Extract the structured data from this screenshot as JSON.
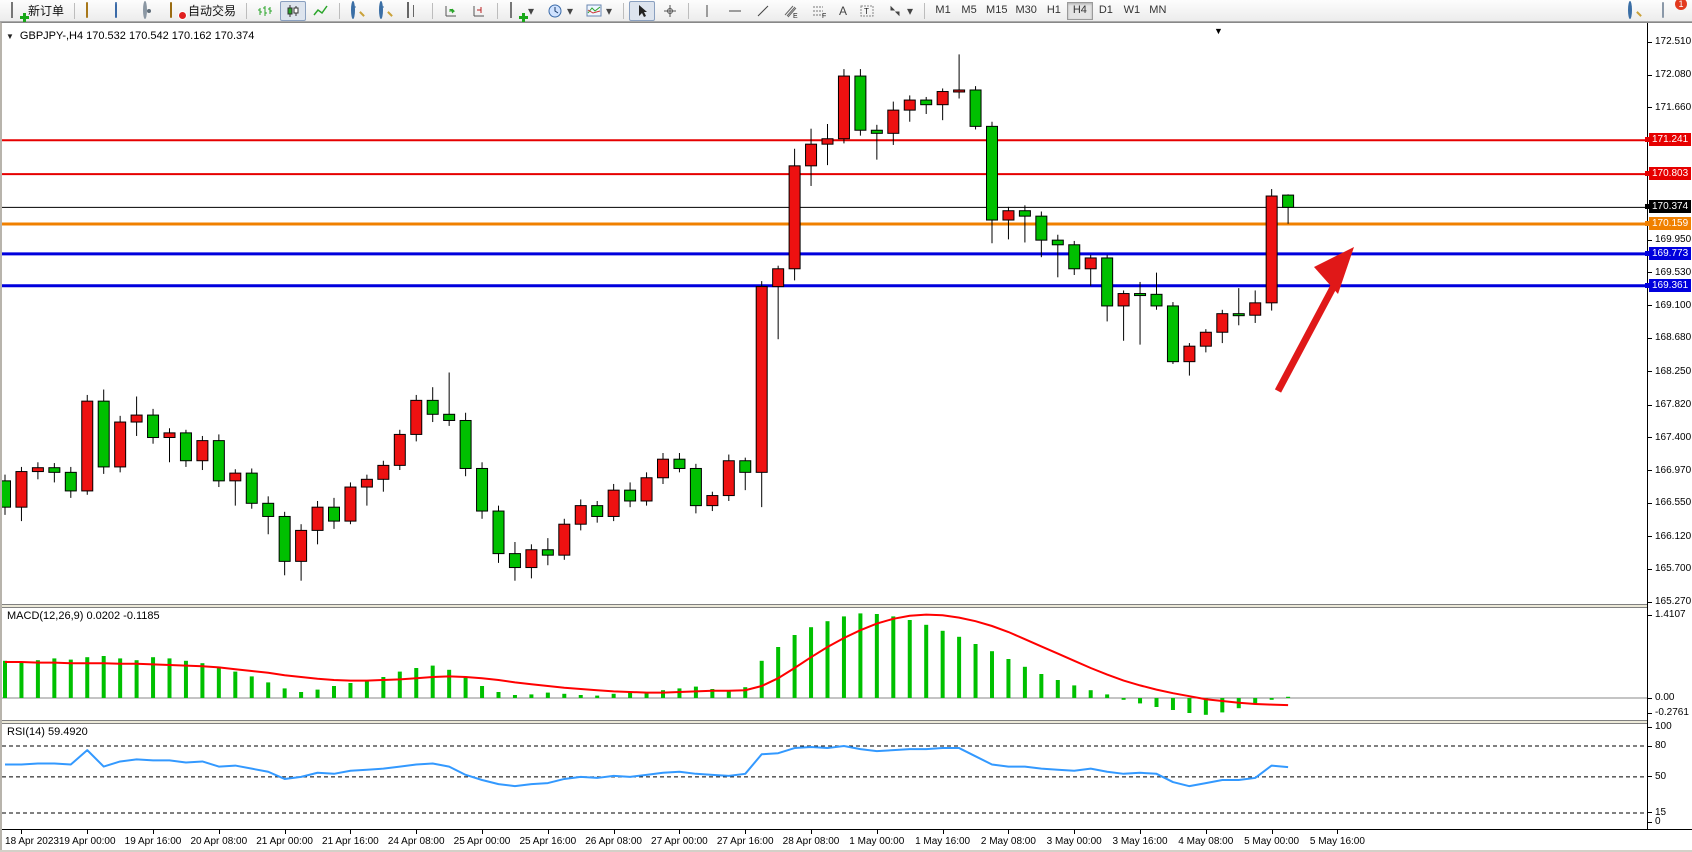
{
  "toolbar": {
    "new_order_label": "新订单",
    "auto_trading_label": "自动交易",
    "timeframes": [
      "M1",
      "M5",
      "M15",
      "M30",
      "H1",
      "H4",
      "D1",
      "W1",
      "MN"
    ],
    "active_timeframe": "H4",
    "chat_badge_count": "1"
  },
  "chart": {
    "symbol_line": "GBPJPY-,H4  170.532 170.542 170.162 170.374",
    "macd_label": "MACD(12,26,9) 0.0202 -0.1185",
    "rsi_label": "RSI(14) 59.4920",
    "colors": {
      "bull": "#ee1111",
      "bear": "#00c000",
      "wick": "#000000",
      "macd_hist": "#00c000",
      "macd_signal": "#ff0000",
      "rsi_line": "#3399ff",
      "line_red": "#e60000",
      "line_orange": "#f08000",
      "line_blue": "#0000dd",
      "bid_line": "#000000",
      "arrow": "#e01818"
    }
  },
  "chart_data": {
    "type": "candlestick",
    "symbol": "GBPJPY-",
    "timeframe": "H4",
    "current_ohlc": {
      "open": "170.532",
      "high": "170.542",
      "low": "170.162",
      "close": "170.374"
    },
    "price_axis_ticks": [
      "172.510",
      "172.080",
      "171.660",
      "169.950",
      "169.530",
      "169.100",
      "168.680",
      "168.250",
      "167.820",
      "167.400",
      "166.970",
      "166.550",
      "166.120",
      "165.700",
      "165.270"
    ],
    "hlines": [
      {
        "price": 171.241,
        "label": "171.241",
        "color": "#e60000",
        "width": 2
      },
      {
        "price": 170.803,
        "label": "170.803",
        "color": "#e60000",
        "width": 2
      },
      {
        "price": 170.374,
        "label": "170.374",
        "color": "#000000",
        "width": 1
      },
      {
        "price": 170.159,
        "label": "170.159",
        "color": "#f08000",
        "width": 3
      },
      {
        "price": 169.773,
        "label": "169.773",
        "color": "#0000dd",
        "width": 3
      },
      {
        "price": 169.361,
        "label": "169.361",
        "color": "#0000dd",
        "width": 3
      }
    ],
    "candles": [
      [
        166.84,
        166.92,
        166.4,
        166.5
      ],
      [
        166.5,
        167.02,
        166.32,
        166.96
      ],
      [
        166.96,
        167.08,
        166.86,
        167.01
      ],
      [
        167.01,
        167.07,
        166.82,
        166.95
      ],
      [
        166.95,
        167.02,
        166.62,
        166.71
      ],
      [
        166.71,
        167.95,
        166.66,
        167.87
      ],
      [
        167.87,
        168.02,
        166.93,
        167.02
      ],
      [
        167.02,
        167.68,
        166.95,
        167.6
      ],
      [
        167.6,
        167.93,
        167.42,
        167.69
      ],
      [
        167.69,
        167.77,
        167.32,
        167.4
      ],
      [
        167.4,
        167.52,
        167.08,
        167.46
      ],
      [
        167.46,
        167.5,
        167.02,
        167.1
      ],
      [
        167.1,
        167.42,
        166.98,
        167.36
      ],
      [
        167.36,
        167.44,
        166.76,
        166.84
      ],
      [
        166.84,
        166.99,
        166.52,
        166.94
      ],
      [
        166.94,
        167.0,
        166.48,
        166.55
      ],
      [
        166.55,
        166.64,
        166.15,
        166.38
      ],
      [
        166.38,
        166.44,
        165.62,
        165.8
      ],
      [
        165.8,
        166.28,
        165.55,
        166.2
      ],
      [
        166.2,
        166.58,
        166.02,
        166.5
      ],
      [
        166.5,
        166.62,
        166.22,
        166.32
      ],
      [
        166.32,
        166.82,
        166.28,
        166.76
      ],
      [
        166.76,
        166.92,
        166.52,
        166.86
      ],
      [
        166.86,
        167.1,
        166.7,
        167.04
      ],
      [
        167.04,
        167.5,
        166.98,
        167.44
      ],
      [
        167.44,
        167.95,
        167.35,
        167.88
      ],
      [
        167.88,
        168.05,
        167.6,
        167.7
      ],
      [
        167.7,
        168.24,
        167.55,
        167.62
      ],
      [
        167.62,
        167.72,
        166.9,
        167.0
      ],
      [
        167.0,
        167.08,
        166.35,
        166.45
      ],
      [
        166.45,
        166.52,
        165.78,
        165.9
      ],
      [
        165.9,
        166.05,
        165.55,
        165.72
      ],
      [
        165.72,
        166.02,
        165.58,
        165.95
      ],
      [
        165.95,
        166.1,
        165.75,
        165.88
      ],
      [
        165.88,
        166.35,
        165.82,
        166.28
      ],
      [
        166.28,
        166.6,
        166.2,
        166.52
      ],
      [
        166.52,
        166.58,
        166.3,
        166.38
      ],
      [
        166.38,
        166.8,
        166.32,
        166.72
      ],
      [
        166.72,
        166.82,
        166.5,
        166.58
      ],
      [
        166.58,
        166.95,
        166.52,
        166.88
      ],
      [
        166.88,
        167.2,
        166.8,
        167.12
      ],
      [
        167.12,
        167.2,
        166.95,
        167.0
      ],
      [
        167.0,
        167.06,
        166.42,
        166.52
      ],
      [
        166.52,
        166.7,
        166.45,
        166.65
      ],
      [
        166.65,
        167.18,
        166.58,
        167.1
      ],
      [
        167.1,
        167.14,
        166.72,
        166.95
      ],
      [
        166.95,
        169.42,
        166.5,
        169.35
      ],
      [
        169.35,
        169.62,
        168.67,
        169.58
      ],
      [
        169.58,
        171.13,
        169.43,
        170.91
      ],
      [
        170.91,
        171.39,
        170.65,
        171.19
      ],
      [
        171.19,
        171.45,
        170.92,
        171.26
      ],
      [
        171.26,
        172.16,
        171.2,
        172.07
      ],
      [
        172.07,
        172.16,
        171.3,
        171.37
      ],
      [
        171.37,
        171.44,
        170.99,
        171.33
      ],
      [
        171.33,
        171.74,
        171.18,
        171.63
      ],
      [
        171.63,
        171.82,
        171.48,
        171.76
      ],
      [
        171.76,
        171.8,
        171.58,
        171.7
      ],
      [
        171.7,
        171.91,
        171.5,
        171.87
      ],
      [
        171.87,
        172.35,
        171.78,
        171.89
      ],
      [
        171.89,
        171.94,
        171.38,
        171.42
      ],
      [
        171.42,
        171.48,
        169.91,
        170.21
      ],
      [
        170.21,
        170.38,
        169.96,
        170.33
      ],
      [
        170.33,
        170.4,
        169.92,
        170.26
      ],
      [
        170.26,
        170.32,
        169.73,
        169.95
      ],
      [
        169.95,
        170.02,
        169.47,
        169.89
      ],
      [
        169.89,
        169.94,
        169.5,
        169.58
      ],
      [
        169.58,
        169.76,
        169.36,
        169.72
      ],
      [
        169.72,
        169.76,
        168.9,
        169.1
      ],
      [
        169.1,
        169.3,
        168.65,
        169.26
      ],
      [
        169.26,
        169.41,
        168.6,
        169.25
      ],
      [
        169.25,
        169.53,
        169.05,
        169.1
      ],
      [
        169.1,
        169.15,
        168.35,
        168.38
      ],
      [
        168.38,
        168.62,
        168.2,
        168.58
      ],
      [
        168.58,
        168.8,
        168.5,
        168.76
      ],
      [
        168.76,
        169.05,
        168.62,
        169.0
      ],
      [
        169.0,
        169.33,
        168.85,
        168.98
      ],
      [
        168.98,
        169.3,
        168.88,
        169.14
      ],
      [
        169.14,
        170.61,
        169.04,
        170.52
      ],
      [
        170.532,
        170.542,
        170.162,
        170.374
      ]
    ],
    "macd": {
      "label": "MACD(12,26,9) 0.0202 -0.1185",
      "params": "12,26,9",
      "value": "0.0202",
      "signal_value": "-0.1185",
      "axis_labels": [
        "1.4107",
        "0.00",
        "-0.2761"
      ],
      "range": [
        -0.2761,
        1.4107
      ],
      "hist": [
        0.62,
        0.6,
        0.63,
        0.66,
        0.64,
        0.68,
        0.7,
        0.66,
        0.63,
        0.68,
        0.66,
        0.62,
        0.58,
        0.52,
        0.44,
        0.36,
        0.26,
        0.16,
        0.1,
        0.14,
        0.2,
        0.25,
        0.3,
        0.35,
        0.44,
        0.5,
        0.54,
        0.47,
        0.36,
        0.2,
        0.1,
        0.05,
        0.06,
        0.09,
        0.07,
        0.05,
        0.04,
        0.07,
        0.1,
        0.08,
        0.13,
        0.16,
        0.19,
        0.15,
        0.12,
        0.18,
        0.62,
        0.85,
        1.05,
        1.18,
        1.28,
        1.36,
        1.41,
        1.4,
        1.36,
        1.3,
        1.22,
        1.12,
        1.02,
        0.9,
        0.78,
        0.65,
        0.52,
        0.4,
        0.3,
        0.21,
        0.13,
        0.06,
        -0.03,
        -0.09,
        -0.15,
        -0.2,
        -0.25,
        -0.28,
        -0.24,
        -0.17,
        -0.1,
        -0.03,
        0.0202
      ],
      "signal": [
        0.6,
        0.6,
        0.59,
        0.59,
        0.58,
        0.58,
        0.58,
        0.57,
        0.57,
        0.56,
        0.55,
        0.54,
        0.53,
        0.51,
        0.48,
        0.45,
        0.42,
        0.38,
        0.35,
        0.32,
        0.3,
        0.29,
        0.29,
        0.3,
        0.31,
        0.33,
        0.35,
        0.36,
        0.35,
        0.33,
        0.3,
        0.26,
        0.23,
        0.2,
        0.17,
        0.15,
        0.13,
        0.11,
        0.1,
        0.09,
        0.09,
        0.1,
        0.11,
        0.12,
        0.12,
        0.13,
        0.2,
        0.33,
        0.5,
        0.68,
        0.85,
        1.0,
        1.13,
        1.24,
        1.32,
        1.37,
        1.39,
        1.38,
        1.34,
        1.28,
        1.2,
        1.1,
        0.98,
        0.86,
        0.74,
        0.62,
        0.5,
        0.39,
        0.29,
        0.21,
        0.14,
        0.08,
        0.03,
        -0.02,
        -0.05,
        -0.08,
        -0.1,
        -0.11,
        -0.1185
      ]
    },
    "rsi": {
      "label": "RSI(14) 59.4920",
      "period": "14",
      "value": "59.4920",
      "axis_labels": [
        "100",
        "80",
        "50",
        "15",
        "0"
      ],
      "levels": [
        80,
        50,
        15
      ],
      "values": [
        62,
        62,
        63,
        63,
        62,
        76,
        60,
        65,
        67,
        66,
        66,
        64,
        65,
        60,
        61,
        58,
        55,
        48,
        50,
        54,
        53,
        56,
        57,
        58,
        60,
        62,
        63,
        60,
        52,
        47,
        43,
        41,
        43,
        44,
        48,
        50,
        49,
        51,
        50,
        52,
        54,
        55,
        53,
        52,
        51,
        53,
        72,
        73,
        78,
        79,
        78,
        80,
        77,
        75,
        76,
        77,
        77,
        78,
        78,
        70,
        62,
        60,
        60,
        58,
        57,
        56,
        58,
        55,
        53,
        54,
        53,
        45,
        41,
        44,
        47,
        47,
        49,
        61,
        59.49
      ],
      "ylim": [
        0,
        100
      ]
    },
    "time_labels": [
      "18 Apr 2023",
      "19 Apr 00:00",
      "19 Apr 16:00",
      "20 Apr 08:00",
      "21 Apr 00:00",
      "21 Apr 16:00",
      "24 Apr 08:00",
      "25 Apr 00:00",
      "25 Apr 16:00",
      "26 Apr 08:00",
      "27 Apr 00:00",
      "27 Apr 16:00",
      "28 Apr 08:00",
      "1 May 00:00",
      "1 May 16:00",
      "2 May 08:00",
      "3 May 00:00",
      "3 May 16:00",
      "4 May 08:00",
      "5 May 00:00",
      "5 May 16:00"
    ],
    "annotations": [
      {
        "type": "arrow",
        "direction": "up-right",
        "color": "#e01818"
      }
    ]
  }
}
